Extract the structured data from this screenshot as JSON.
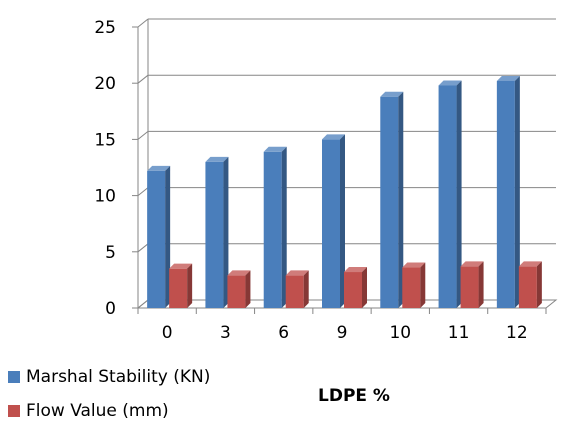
{
  "chart_data": {
    "type": "bar",
    "categories": [
      "0",
      "3",
      "6",
      "9",
      "10",
      "11",
      "12"
    ],
    "series": [
      {
        "name": "Marshal Stability (KN)",
        "values": [
          12.2,
          13.0,
          13.9,
          15.0,
          18.8,
          19.8,
          20.2
        ],
        "color": "#4a7ebb"
      },
      {
        "name": "Flow Value (mm)",
        "values": [
          3.5,
          2.9,
          2.9,
          3.2,
          3.6,
          3.7,
          3.7
        ],
        "color": "#c0504d"
      }
    ],
    "xlabel": "LDPE %",
    "ylim": [
      0,
      25
    ],
    "yticks": [
      "0",
      "5",
      "10",
      "15",
      "20",
      "25"
    ],
    "grid": true,
    "style": "3d-clustered-column",
    "legend_position": "bottom-left"
  }
}
